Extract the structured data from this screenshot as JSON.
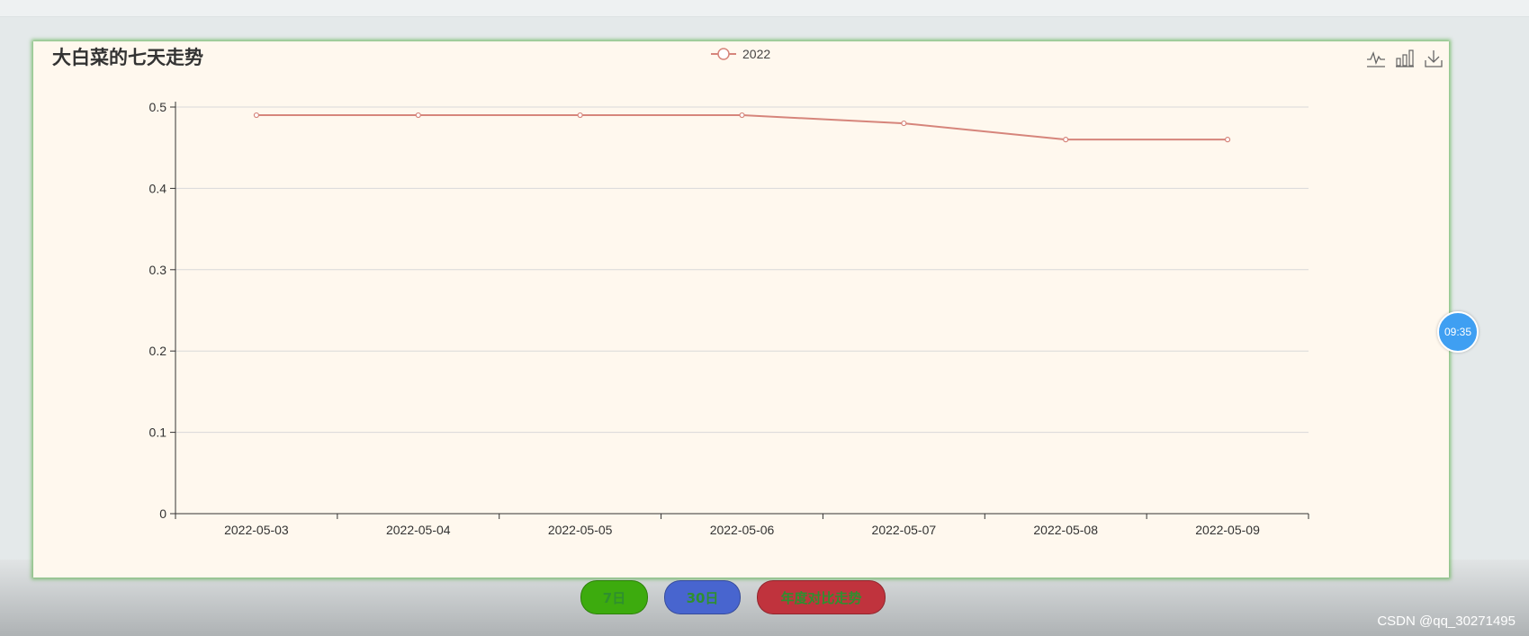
{
  "chart_data": {
    "type": "line",
    "title": "大白菜的七天走势",
    "categories": [
      "2022-05-03",
      "2022-05-04",
      "2022-05-05",
      "2022-05-06",
      "2022-05-07",
      "2022-05-08",
      "2022-05-09"
    ],
    "series": [
      {
        "name": "2022",
        "values": [
          0.49,
          0.49,
          0.49,
          0.49,
          0.48,
          0.46,
          0.46
        ],
        "color": "#d6857b"
      }
    ],
    "ylim": [
      0,
      0.5
    ],
    "yticks": [
      "0",
      "0.1",
      "0.2",
      "0.3",
      "0.4",
      "0.5"
    ],
    "grid": true,
    "legend": "top-center"
  },
  "toolbox": [
    {
      "name": "line-chart-icon"
    },
    {
      "name": "bar-chart-icon"
    },
    {
      "name": "download-icon"
    }
  ],
  "buttons": {
    "seven_days": "7日",
    "thirty_days": "30日",
    "yearly": "年度对比走势"
  },
  "time_bubble": "09:35",
  "watermark": "CSDN @qq_30271495"
}
